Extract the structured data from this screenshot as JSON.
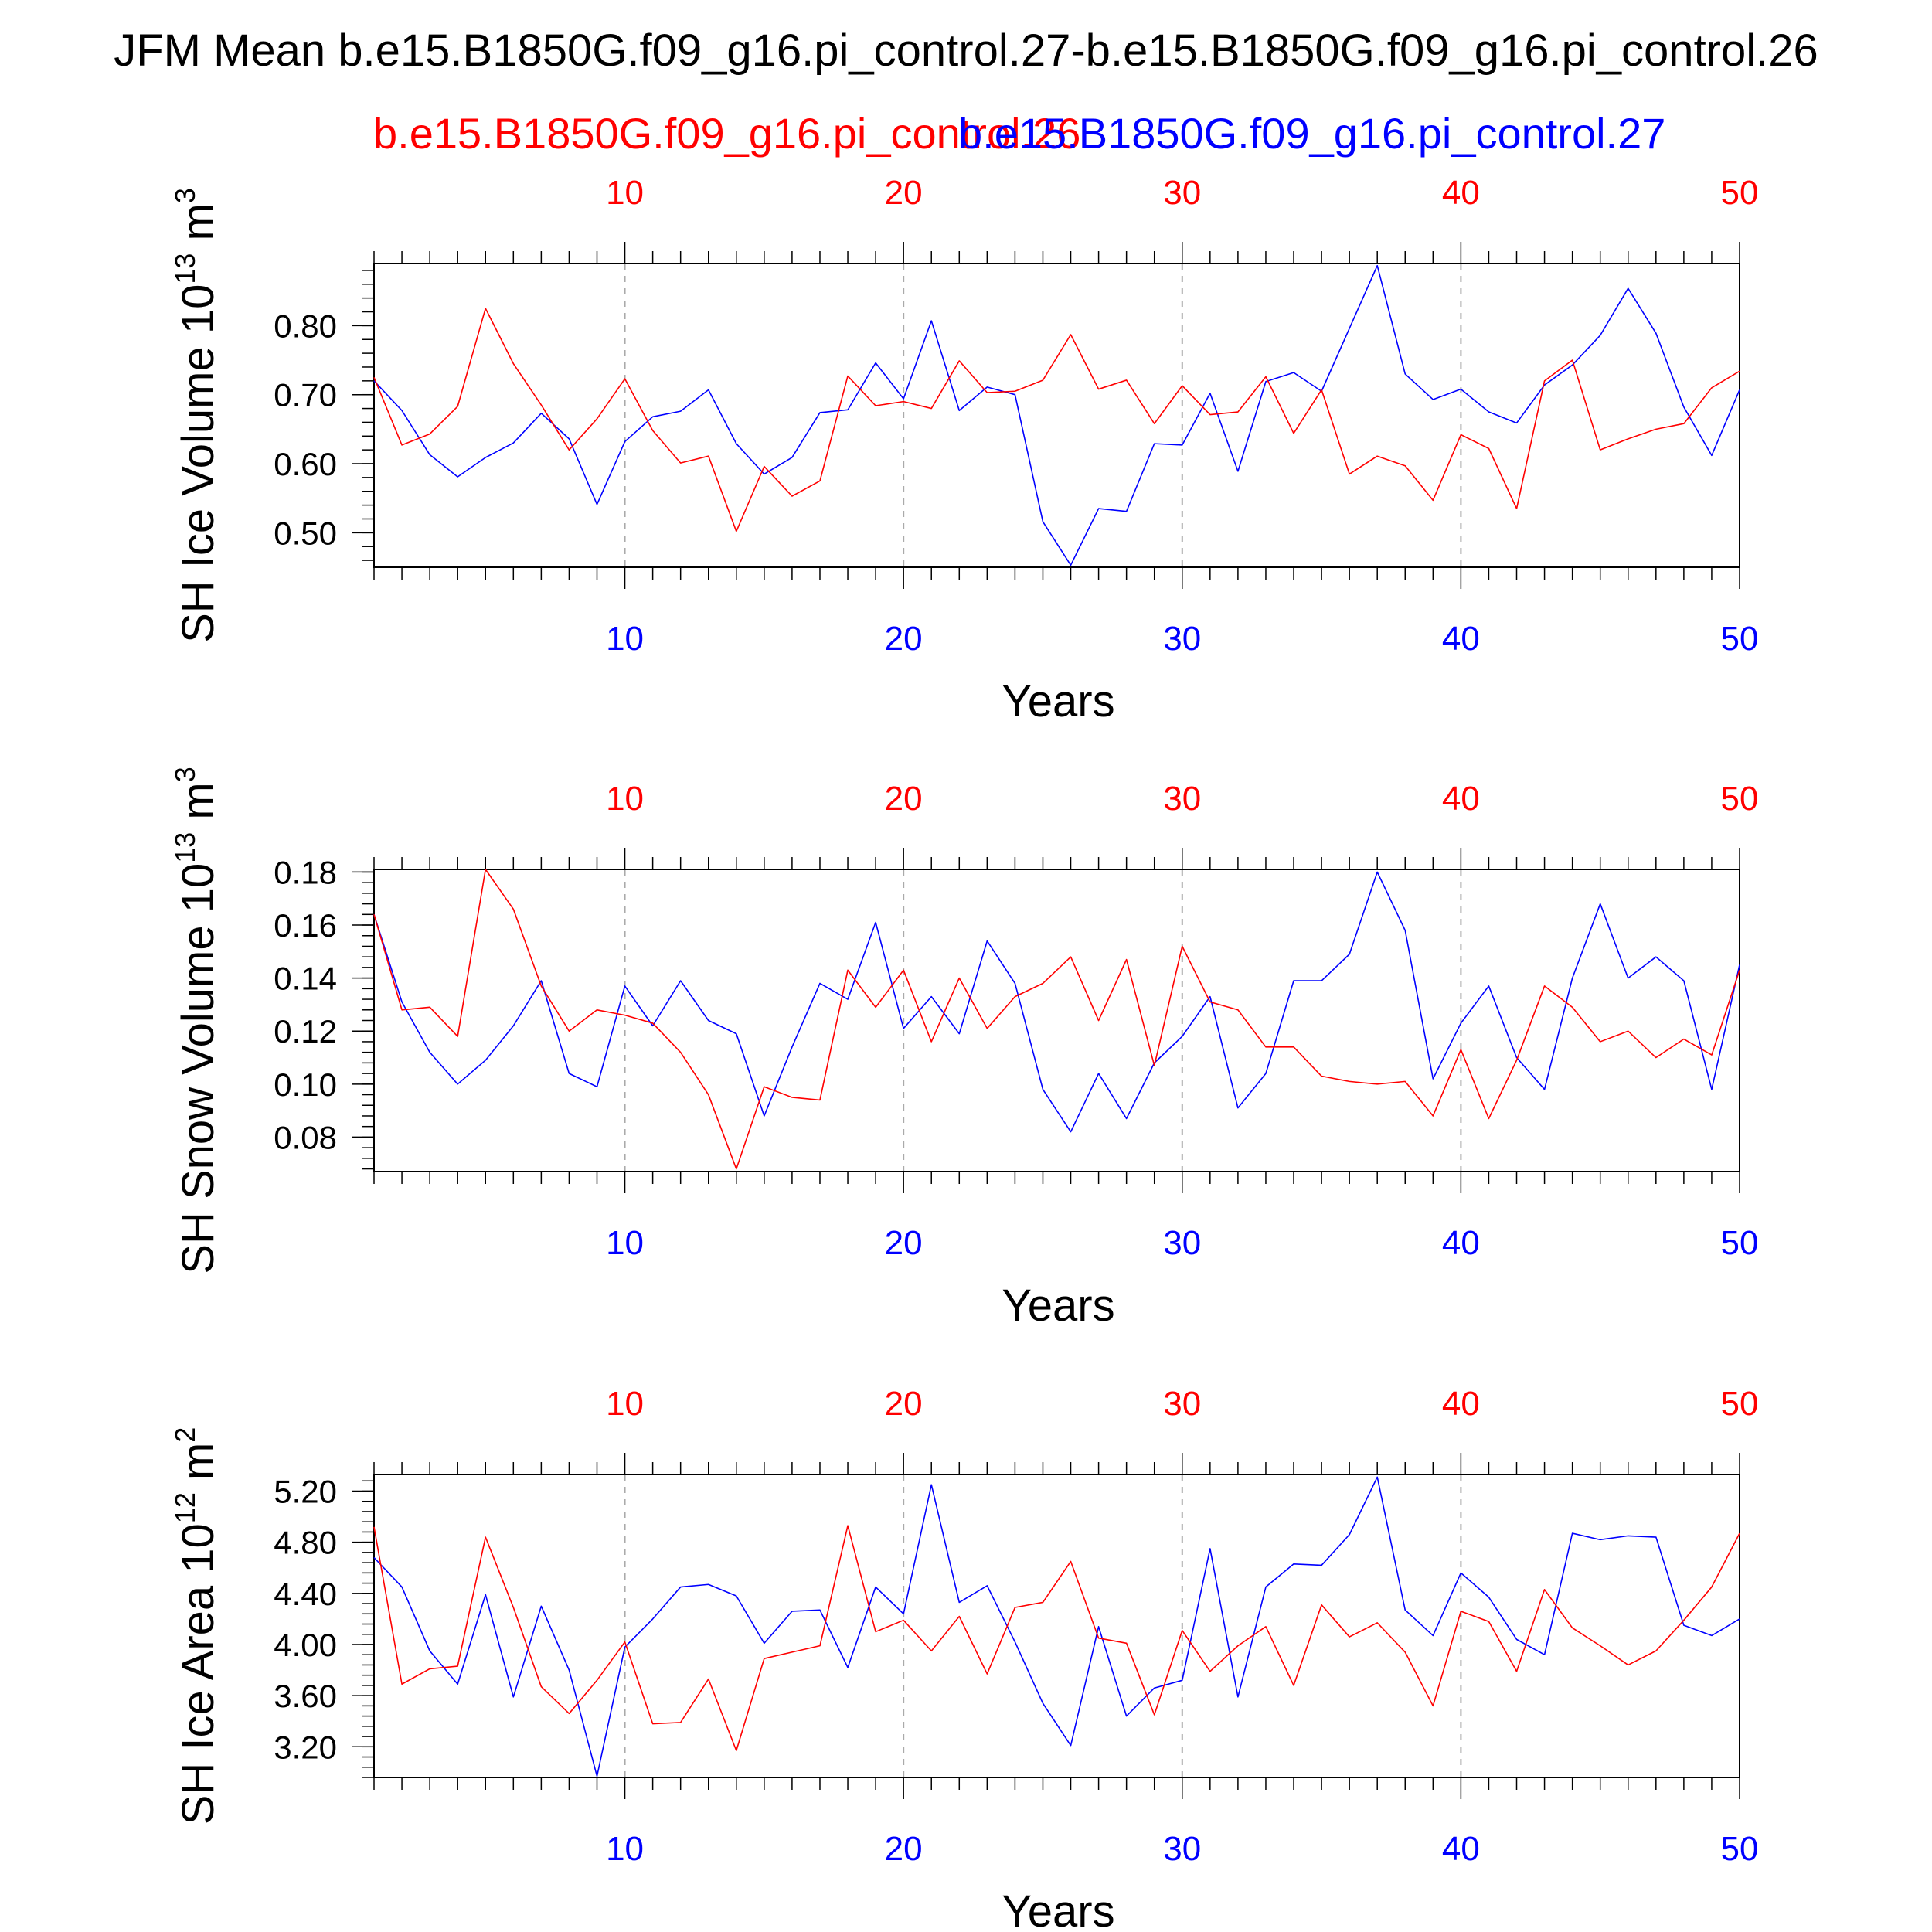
{
  "title": "JFM Mean b.e15.B1850G.f09_g16.pi_control.27-b.e15.B1850G.f09_g16.pi_control.26",
  "legend": {
    "red_label": "b.e15.B1850G.f09_g16.pi_control.26",
    "blue_label": "b.e15.B1850G.f09_g16.pi_control.27"
  },
  "colors": {
    "red": "#ff0000",
    "blue": "#0000ff",
    "axis": "#000000",
    "grid": "#aaaaaa"
  },
  "chart_data": [
    {
      "type": "line",
      "ylabel": "SH Ice Volume 10",
      "ylabel_exp": "13",
      "ylabel_unit": " m",
      "ylabel_unit_exp": "3",
      "xlabel": "Years",
      "xlim": [
        1,
        50
      ],
      "ylim": [
        0.45,
        0.89
      ],
      "yticks": [
        "0.50",
        "0.60",
        "0.70",
        "0.80"
      ],
      "xticks": [
        "10",
        "20",
        "30",
        "40",
        "50"
      ],
      "grid": true,
      "series": [
        {
          "name": "b.e15.B1850G.f09_g16.pi_control.26",
          "color": "red",
          "values": [
            0.725,
            0.627,
            0.643,
            0.683,
            0.825,
            0.745,
            0.685,
            0.62,
            0.665,
            0.723,
            0.648,
            0.601,
            0.611,
            0.502,
            0.596,
            0.553,
            0.575,
            0.727,
            0.684,
            0.69,
            0.68,
            0.749,
            0.703,
            0.705,
            0.721,
            0.787,
            0.708,
            0.721,
            0.658,
            0.713,
            0.671,
            0.675,
            0.726,
            0.644,
            0.707,
            0.585,
            0.611,
            0.597,
            0.547,
            0.642,
            0.622,
            0.535,
            0.72,
            0.75,
            0.62,
            0.636,
            0.65,
            0.658,
            0.71,
            0.734
          ]
        },
        {
          "name": "b.e15.B1850G.f09_g16.pi_control.27",
          "color": "blue",
          "values": [
            0.72,
            0.677,
            0.613,
            0.581,
            0.609,
            0.63,
            0.673,
            0.636,
            0.541,
            0.632,
            0.668,
            0.676,
            0.707,
            0.629,
            0.585,
            0.609,
            0.674,
            0.678,
            0.746,
            0.694,
            0.807,
            0.677,
            0.711,
            0.7,
            0.516,
            0.453,
            0.535,
            0.531,
            0.629,
            0.627,
            0.702,
            0.589,
            0.719,
            0.732,
            0.705,
            0.796,
            0.887,
            0.73,
            0.693,
            0.708,
            0.675,
            0.659,
            0.714,
            0.743,
            0.786,
            0.854,
            0.789,
            0.682,
            0.612,
            0.707
          ]
        }
      ]
    },
    {
      "type": "line",
      "ylabel": "SH Snow Volume 10",
      "ylabel_exp": "13",
      "ylabel_unit": " m",
      "ylabel_unit_exp": "3",
      "xlabel": "Years",
      "xlim": [
        1,
        50
      ],
      "ylim": [
        0.067,
        0.181
      ],
      "yticks": [
        "0.08",
        "0.10",
        "0.12",
        "0.14",
        "0.16",
        "0.18"
      ],
      "xticks": [
        "10",
        "20",
        "30",
        "40",
        "50"
      ],
      "grid": true,
      "series": [
        {
          "name": "b.e15.B1850G.f09_g16.pi_control.26",
          "color": "red",
          "values": [
            0.164,
            0.128,
            0.129,
            0.118,
            0.181,
            0.166,
            0.137,
            0.12,
            0.128,
            0.126,
            0.123,
            0.112,
            0.096,
            0.068,
            0.099,
            0.095,
            0.094,
            0.143,
            0.129,
            0.143,
            0.116,
            0.14,
            0.121,
            0.133,
            0.138,
            0.148,
            0.124,
            0.147,
            0.107,
            0.152,
            0.131,
            0.128,
            0.114,
            0.114,
            0.103,
            0.101,
            0.1,
            0.101,
            0.088,
            0.113,
            0.087,
            0.109,
            0.137,
            0.129,
            0.116,
            0.12,
            0.11,
            0.117,
            0.111,
            0.143
          ]
        },
        {
          "name": "b.e15.B1850G.f09_g16.pi_control.27",
          "color": "blue",
          "values": [
            0.164,
            0.131,
            0.112,
            0.1,
            0.109,
            0.122,
            0.139,
            0.104,
            0.099,
            0.137,
            0.122,
            0.139,
            0.124,
            0.119,
            0.088,
            0.114,
            0.138,
            0.132,
            0.161,
            0.121,
            0.133,
            0.119,
            0.154,
            0.138,
            0.098,
            0.082,
            0.104,
            0.087,
            0.108,
            0.118,
            0.133,
            0.091,
            0.104,
            0.139,
            0.139,
            0.149,
            0.18,
            0.158,
            0.102,
            0.123,
            0.137,
            0.11,
            0.098,
            0.14,
            0.168,
            0.14,
            0.148,
            0.139,
            0.098,
            0.145
          ]
        }
      ]
    },
    {
      "type": "line",
      "ylabel": "SH Ice Area 10",
      "ylabel_exp": "12",
      "ylabel_unit": " m",
      "ylabel_unit_exp": "2",
      "xlabel": "Years",
      "xlim": [
        1,
        50
      ],
      "ylim": [
        2.96,
        5.33
      ],
      "yticks": [
        "3.20",
        "3.60",
        "4.00",
        "4.40",
        "4.80",
        "5.20"
      ],
      "xticks": [
        "10",
        "20",
        "30",
        "40",
        "50"
      ],
      "grid": true,
      "series": [
        {
          "name": "b.e15.B1850G.f09_g16.pi_control.26",
          "color": "red",
          "values": [
            4.92,
            3.69,
            3.81,
            3.83,
            4.84,
            4.29,
            3.67,
            3.46,
            3.72,
            4.02,
            3.38,
            3.39,
            3.73,
            3.17,
            3.89,
            3.94,
            3.99,
            4.93,
            4.1,
            4.19,
            3.95,
            4.22,
            3.77,
            4.29,
            4.33,
            4.65,
            4.05,
            4.01,
            3.45,
            4.11,
            3.79,
            3.99,
            4.14,
            3.68,
            4.31,
            4.06,
            4.17,
            3.94,
            3.52,
            4.26,
            4.18,
            3.79,
            4.43,
            4.13,
            3.99,
            3.84,
            3.95,
            4.19,
            4.45,
            4.87
          ]
        },
        {
          "name": "b.e15.B1850G.f09_g16.pi_control.27",
          "color": "blue",
          "values": [
            4.68,
            4.45,
            3.95,
            3.69,
            4.39,
            3.59,
            4.3,
            3.8,
            2.97,
            3.98,
            4.2,
            4.45,
            4.47,
            4.38,
            4.01,
            4.26,
            4.27,
            3.82,
            4.45,
            4.24,
            5.25,
            4.33,
            4.46,
            4.02,
            3.54,
            3.21,
            4.14,
            3.44,
            3.66,
            3.72,
            4.75,
            3.59,
            4.45,
            4.63,
            4.62,
            4.86,
            5.31,
            4.27,
            4.07,
            4.56,
            4.37,
            4.04,
            3.92,
            4.87,
            4.82,
            4.85,
            4.84,
            4.15,
            4.07,
            4.2
          ]
        }
      ]
    }
  ]
}
